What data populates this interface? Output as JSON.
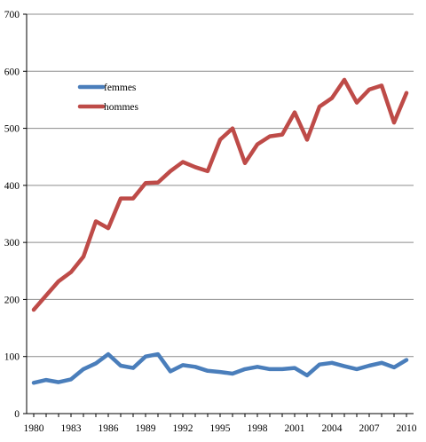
{
  "chart_data": {
    "type": "line",
    "x": [
      1980,
      1981,
      1982,
      1983,
      1984,
      1985,
      1986,
      1987,
      1988,
      1989,
      1990,
      1991,
      1992,
      1993,
      1994,
      1995,
      1996,
      1997,
      1998,
      1999,
      2000,
      2001,
      2002,
      2003,
      2004,
      2005,
      2006,
      2007,
      2008,
      2009,
      2010
    ],
    "series": [
      {
        "name": "femmes",
        "color": "#4a7ebb",
        "values": [
          54,
          59,
          55,
          60,
          78,
          88,
          104,
          84,
          80,
          100,
          104,
          74,
          85,
          82,
          75,
          73,
          70,
          78,
          82,
          78,
          78,
          80,
          67,
          86,
          89,
          83,
          78,
          84,
          89,
          81,
          94
        ]
      },
      {
        "name": "hommes",
        "color": "#be4b48",
        "values": [
          182,
          207,
          232,
          248,
          275,
          337,
          325,
          377,
          377,
          404,
          405,
          425,
          441,
          432,
          425,
          480,
          500,
          439,
          472,
          486,
          489,
          528,
          480,
          538,
          553,
          585,
          545,
          568,
          575,
          510,
          562
        ]
      }
    ],
    "x_ticks": [
      1980,
      1983,
      1986,
      1989,
      1992,
      1995,
      1998,
      2001,
      2004,
      2007,
      2010
    ],
    "y_ticks": [
      0,
      100,
      200,
      300,
      400,
      500,
      600,
      700
    ],
    "ylim": [
      0,
      700
    ],
    "xlim": [
      1980,
      2010
    ],
    "title": "",
    "xlabel": "",
    "ylabel": "",
    "grid": "horizontal",
    "legend_placement": "upper-left inside plot"
  }
}
